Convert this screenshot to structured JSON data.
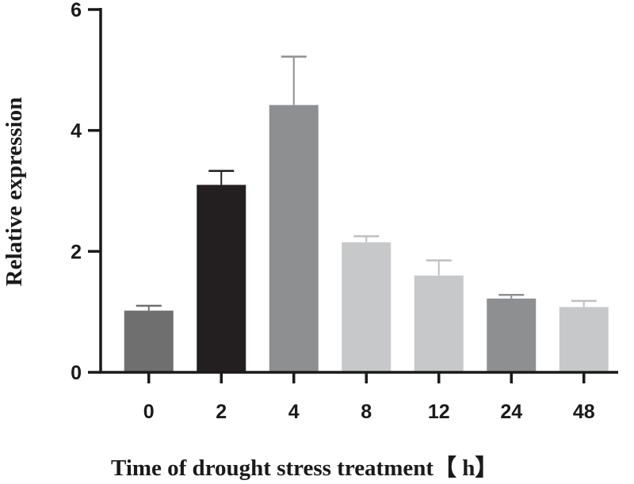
{
  "chart_data": {
    "type": "bar",
    "title": "",
    "xlabel": "Time of drought stress treatment【 h】",
    "ylabel": "Relative expression",
    "categories": [
      "0",
      "2",
      "4",
      "8",
      "12",
      "24",
      "48"
    ],
    "values": [
      1.02,
      3.1,
      4.42,
      2.15,
      1.6,
      1.22,
      1.08
    ],
    "errors": [
      0.08,
      0.23,
      0.8,
      0.1,
      0.25,
      0.06,
      0.1
    ],
    "ylim": [
      0,
      6
    ],
    "yticks": [
      0,
      2,
      4,
      6
    ],
    "bar_colors": [
      "#6f6f6f",
      "#231f20",
      "#8e8f91",
      "#c7c8ca",
      "#c7c8ca",
      "#8e8f91",
      "#c7c8ca"
    ],
    "error_bar_colors": [
      "#6f6f6f",
      "#231f20",
      "#8e8f91",
      "#bfbfc1",
      "#bfbfc1",
      "#8e8f91",
      "#bfbfc1"
    ],
    "axis_color": "#1a1a1a",
    "grid": false,
    "legend": "none"
  }
}
